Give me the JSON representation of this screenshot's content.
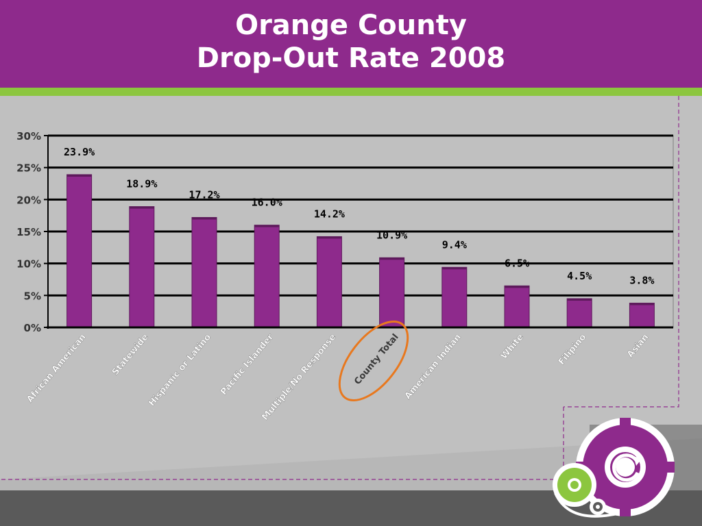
{
  "header": {
    "title_line1": "Orange County",
    "title_line2": "Drop-Out Rate 2008"
  },
  "colors": {
    "header_purple": "#8e2a8c",
    "accent_green": "#8cc63f",
    "bar_purple": "#8e2a8c",
    "highlight_orange": "#e8781e",
    "footer_gray": "#5a5a5a"
  },
  "chart_data": {
    "type": "bar",
    "categories": [
      "African American",
      "Statewide",
      "Hispanic or Latino",
      "Pacific Islander",
      "Multiple/No Response",
      "County Total",
      "American Indian",
      "White",
      "Filipino",
      "Asian"
    ],
    "values": [
      23.9,
      18.9,
      17.2,
      16.0,
      14.2,
      10.9,
      9.4,
      6.5,
      4.5,
      3.8
    ],
    "data_labels": [
      "23.9%",
      "18.9%",
      "17.2%",
      "16.0%",
      "14.2%",
      "10.9%",
      "9.4%",
      "6.5%",
      "4.5%",
      "3.8%"
    ],
    "y_ticks": [
      "0%",
      "5%",
      "10%",
      "15%",
      "20%",
      "25%",
      "30%"
    ],
    "ylim": [
      0,
      30
    ],
    "grid": true,
    "highlighted_category": "County Total",
    "title": "",
    "xlabel": "",
    "ylabel": ""
  },
  "logo": {
    "icons": [
      "large-gear-icon",
      "small-gear-icon",
      "tiny-gear-icon",
      "refresh-arrow-icon"
    ]
  }
}
